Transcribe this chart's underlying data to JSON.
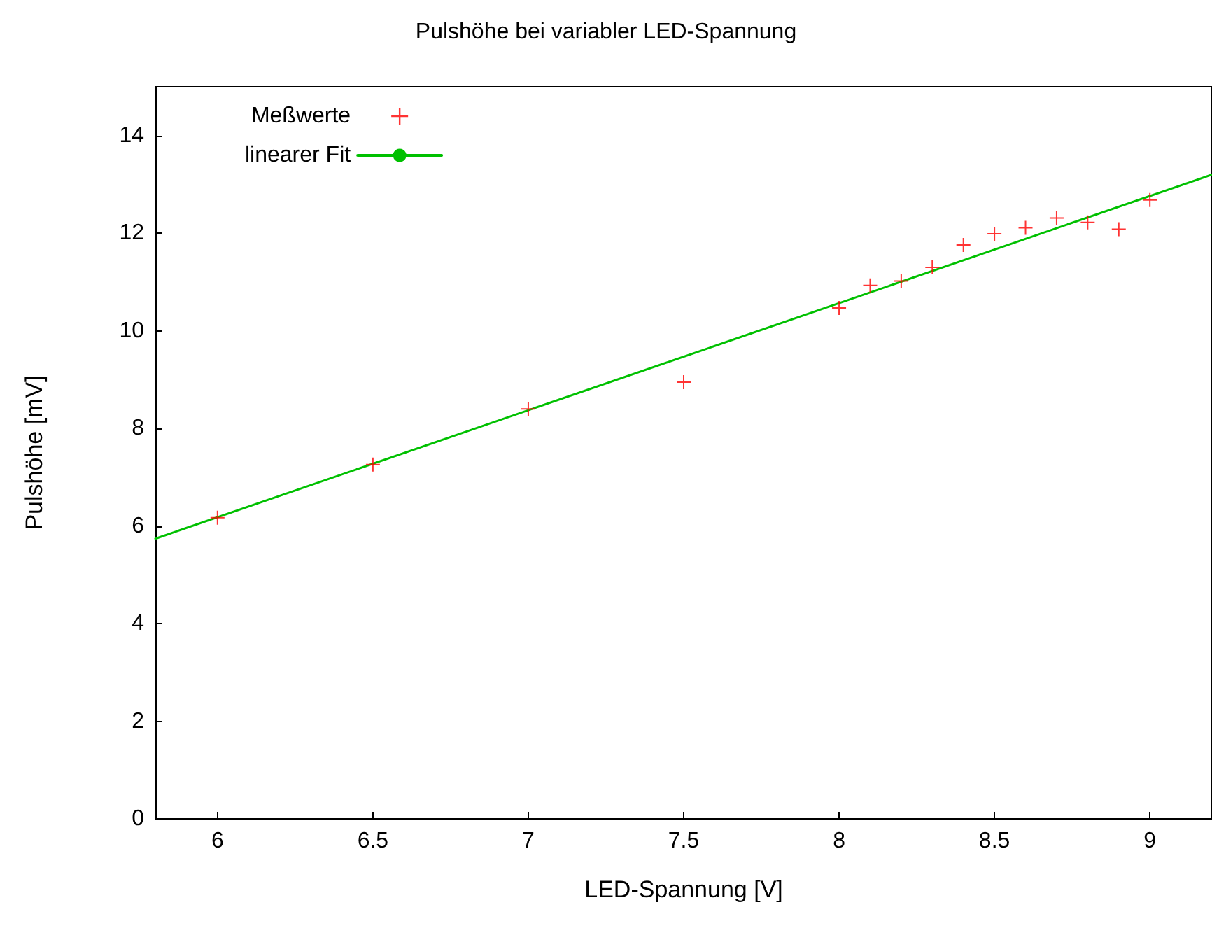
{
  "chart_data": {
    "type": "scatter",
    "title": "Pulshöhe bei variabler LED-Spannung",
    "xlabel": "LED-Spannung [V]",
    "ylabel": "Pulshöhe [mV]",
    "series": [
      {
        "name": "Meßwerte",
        "type": "scatter",
        "color": "#ff0000",
        "marker": "cross",
        "x": [
          6,
          6.5,
          7,
          7.5,
          8,
          8.1,
          8.2,
          8.3,
          8.4,
          8.5,
          8.6,
          8.7,
          8.8,
          8.9,
          9
        ],
        "values": [
          6.17,
          7.26,
          8.4,
          8.95,
          10.47,
          10.93,
          11.02,
          11.3,
          11.76,
          11.99,
          12.11,
          12.31,
          12.22,
          12.08,
          12.68
        ]
      },
      {
        "name": "linearer Fit",
        "type": "line",
        "color": "#00c000",
        "marker": "none",
        "line_style": "solid",
        "x": [
          5.8,
          9.2
        ],
        "values": [
          5.74,
          13.2
        ]
      }
    ],
    "xlim": [
      5.8,
      9.2
    ],
    "xticks": [
      6,
      6.5,
      7,
      7.5,
      8,
      8.5,
      9
    ],
    "ylim": [
      0,
      15
    ],
    "yticks": [
      0,
      2,
      4,
      6,
      8,
      10,
      12,
      14
    ],
    "grid": false,
    "legend": "top left"
  }
}
